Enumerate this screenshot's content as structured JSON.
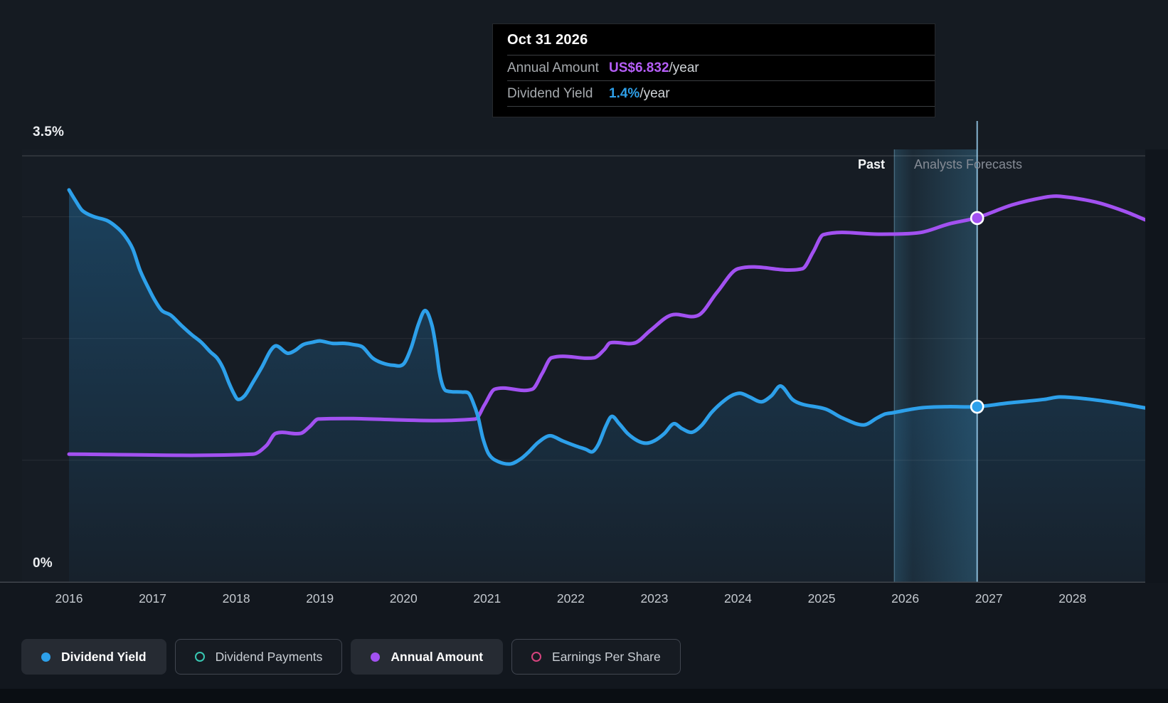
{
  "page": {
    "bg": "#151b22",
    "lower_bg": "#12171e",
    "footer_bg": "#0a0e13"
  },
  "tooltip": {
    "date": "Oct 31 2026",
    "rows": [
      {
        "label": "Annual Amount",
        "value": "US$6.832",
        "suffix": "/year",
        "color": "#b55ef8"
      },
      {
        "label": "Dividend Yield",
        "value": "1.4%",
        "suffix": "/year",
        "color": "#2e9fe8"
      }
    ]
  },
  "annotations": {
    "past": "Past",
    "forecast": "Analysts Forecasts"
  },
  "y_axis": {
    "max_label": "3.5%",
    "min_label": "0%"
  },
  "legend": [
    {
      "label": "Dividend Yield",
      "marker": "dot",
      "color": "#2da0ea",
      "active": true
    },
    {
      "label": "Dividend Payments",
      "marker": "ring",
      "color": "#38c7b2",
      "active": false
    },
    {
      "label": "Annual Amount",
      "marker": "dot",
      "color": "#a251f1",
      "active": true
    },
    {
      "label": "Earnings Per Share",
      "marker": "ring",
      "color": "#d6437e",
      "active": false
    }
  ],
  "chart_data": {
    "type": "line",
    "title": "Dividend history and forecast",
    "x_ticks": [
      2016,
      2017,
      2018,
      2019,
      2020,
      2021,
      2022,
      2023,
      2024,
      2025,
      2026,
      2027,
      2028
    ],
    "x_range": [
      2016,
      2028.87
    ],
    "ylim_pct": [
      0,
      3.5
    ],
    "ylim_usd": [
      0,
      8.0
    ],
    "grid_pct": [
      1,
      2,
      3
    ],
    "top_line_pct": 3.5,
    "grid_on": true,
    "past_boundary_year": 2025.87,
    "hover_year": 2026.86,
    "hover_date_label": "Oct 31 2026",
    "series": [
      {
        "name": "Dividend Yield",
        "unit": "%",
        "color": "#2da0ea",
        "area": true,
        "points": [
          [
            2016.0,
            3.22
          ],
          [
            2016.08,
            3.13
          ],
          [
            2016.16,
            3.05
          ],
          [
            2016.3,
            3.0
          ],
          [
            2016.45,
            2.97
          ],
          [
            2016.56,
            2.92
          ],
          [
            2016.66,
            2.85
          ],
          [
            2016.76,
            2.74
          ],
          [
            2016.85,
            2.56
          ],
          [
            2016.96,
            2.4
          ],
          [
            2017.03,
            2.31
          ],
          [
            2017.11,
            2.23
          ],
          [
            2017.22,
            2.19
          ],
          [
            2017.34,
            2.11
          ],
          [
            2017.47,
            2.03
          ],
          [
            2017.58,
            1.97
          ],
          [
            2017.69,
            1.89
          ],
          [
            2017.77,
            1.84
          ],
          [
            2017.84,
            1.76
          ],
          [
            2017.91,
            1.64
          ],
          [
            2017.97,
            1.55
          ],
          [
            2018.02,
            1.5
          ],
          [
            2018.1,
            1.53
          ],
          [
            2018.2,
            1.64
          ],
          [
            2018.31,
            1.77
          ],
          [
            2018.41,
            1.9
          ],
          [
            2018.48,
            1.94
          ],
          [
            2018.61,
            1.88
          ],
          [
            2018.7,
            1.9
          ],
          [
            2018.8,
            1.95
          ],
          [
            2018.92,
            1.97
          ],
          [
            2019.0,
            1.98
          ],
          [
            2019.15,
            1.96
          ],
          [
            2019.3,
            1.96
          ],
          [
            2019.4,
            1.95
          ],
          [
            2019.51,
            1.93
          ],
          [
            2019.63,
            1.84
          ],
          [
            2019.74,
            1.8
          ],
          [
            2019.88,
            1.78
          ],
          [
            2020.0,
            1.79
          ],
          [
            2020.09,
            1.92
          ],
          [
            2020.18,
            2.12
          ],
          [
            2020.26,
            2.23
          ],
          [
            2020.34,
            2.11
          ],
          [
            2020.39,
            1.92
          ],
          [
            2020.43,
            1.72
          ],
          [
            2020.47,
            1.61
          ],
          [
            2020.51,
            1.57
          ],
          [
            2020.7,
            1.56
          ],
          [
            2020.78,
            1.55
          ],
          [
            2020.83,
            1.48
          ],
          [
            2020.89,
            1.36
          ],
          [
            2020.95,
            1.18
          ],
          [
            2021.02,
            1.05
          ],
          [
            2021.13,
            0.99
          ],
          [
            2021.28,
            0.97
          ],
          [
            2021.4,
            1.01
          ],
          [
            2021.5,
            1.07
          ],
          [
            2021.6,
            1.14
          ],
          [
            2021.7,
            1.19
          ],
          [
            2021.77,
            1.2
          ],
          [
            2021.9,
            1.16
          ],
          [
            2022.05,
            1.12
          ],
          [
            2022.18,
            1.09
          ],
          [
            2022.26,
            1.07
          ],
          [
            2022.33,
            1.13
          ],
          [
            2022.42,
            1.28
          ],
          [
            2022.49,
            1.36
          ],
          [
            2022.58,
            1.3
          ],
          [
            2022.68,
            1.22
          ],
          [
            2022.8,
            1.16
          ],
          [
            2022.9,
            1.14
          ],
          [
            2023.0,
            1.16
          ],
          [
            2023.12,
            1.22
          ],
          [
            2023.23,
            1.3
          ],
          [
            2023.33,
            1.26
          ],
          [
            2023.45,
            1.23
          ],
          [
            2023.57,
            1.29
          ],
          [
            2023.68,
            1.39
          ],
          [
            2023.8,
            1.47
          ],
          [
            2023.92,
            1.53
          ],
          [
            2024.03,
            1.55
          ],
          [
            2024.14,
            1.52
          ],
          [
            2024.28,
            1.48
          ],
          [
            2024.4,
            1.53
          ],
          [
            2024.51,
            1.61
          ],
          [
            2024.65,
            1.5
          ],
          [
            2024.77,
            1.46
          ],
          [
            2025.05,
            1.42
          ],
          [
            2025.24,
            1.35
          ],
          [
            2025.5,
            1.29
          ],
          [
            2025.67,
            1.35
          ],
          [
            2025.76,
            1.38
          ],
          [
            2025.85,
            1.39
          ],
          [
            2026.18,
            1.43
          ],
          [
            2026.5,
            1.44
          ],
          [
            2026.86,
            1.44
          ],
          [
            2027.23,
            1.47
          ],
          [
            2027.66,
            1.5
          ],
          [
            2027.85,
            1.52
          ],
          [
            2028.22,
            1.5
          ],
          [
            2028.53,
            1.47
          ],
          [
            2028.87,
            1.43
          ]
        ]
      },
      {
        "name": "Annual Amount",
        "unit": "US$/year",
        "color": "#a251f1",
        "area": false,
        "points": [
          [
            2016.0,
            2.4
          ],
          [
            2018.2,
            2.4
          ],
          [
            2018.36,
            2.56
          ],
          [
            2018.47,
            2.79
          ],
          [
            2018.77,
            2.79
          ],
          [
            2018.88,
            2.92
          ],
          [
            2018.98,
            3.06
          ],
          [
            2020.86,
            3.06
          ],
          [
            2020.97,
            3.33
          ],
          [
            2021.09,
            3.62
          ],
          [
            2021.54,
            3.62
          ],
          [
            2021.66,
            3.92
          ],
          [
            2021.77,
            4.21
          ],
          [
            2022.28,
            4.21
          ],
          [
            2022.4,
            4.36
          ],
          [
            2022.47,
            4.49
          ],
          [
            2022.77,
            4.49
          ],
          [
            2022.95,
            4.72
          ],
          [
            2023.2,
            5.01
          ],
          [
            2023.53,
            5.01
          ],
          [
            2023.75,
            5.44
          ],
          [
            2024.0,
            5.88
          ],
          [
            2024.77,
            5.88
          ],
          [
            2024.9,
            6.2
          ],
          [
            2025.02,
            6.52
          ],
          [
            2025.7,
            6.53
          ],
          [
            2026.18,
            6.56
          ],
          [
            2026.52,
            6.72
          ],
          [
            2026.86,
            6.84
          ],
          [
            2027.28,
            7.08
          ],
          [
            2027.66,
            7.22
          ],
          [
            2027.85,
            7.24
          ],
          [
            2028.28,
            7.13
          ],
          [
            2028.62,
            6.96
          ],
          [
            2028.87,
            6.8
          ]
        ]
      }
    ],
    "markers": [
      {
        "series": "Annual Amount",
        "year": 2026.86,
        "value": 6.832
      },
      {
        "series": "Dividend Yield",
        "year": 2026.86,
        "value": 1.44
      }
    ],
    "legend_position": "bottom"
  }
}
